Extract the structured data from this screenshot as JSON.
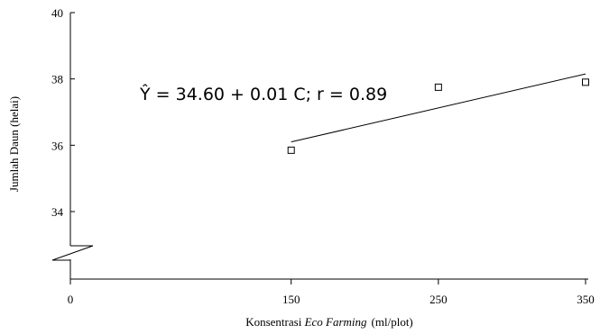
{
  "chart_data": {
    "type": "scatter",
    "xlabel_plain": "Konsentrasi ",
    "xlabel_italic": "Eco Farming",
    "xlabel_unit": "(ml/plot)",
    "ylabel": "Jumlah Daun (helai)",
    "x_ticks": [
      0,
      150,
      250,
      350
    ],
    "y_ticks": [
      34,
      36,
      38,
      40
    ],
    "points": [
      {
        "x": 150,
        "y": 35.85
      },
      {
        "x": 250,
        "y": 37.75
      },
      {
        "x": 350,
        "y": 37.9
      }
    ],
    "trendline": {
      "x_start": 150,
      "y_start": 36.1,
      "x_end": 350,
      "y_end": 38.15
    },
    "equation": "Ŷ = 34.60 + 0.01 C; r = 0.89",
    "ylim": [
      32.8,
      40
    ],
    "y_axis_break": true,
    "grid": false,
    "legend": "none"
  }
}
